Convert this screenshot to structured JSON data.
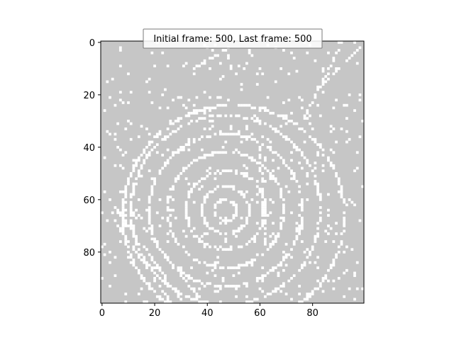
{
  "window": {
    "background": "#ffffff"
  },
  "chart_data": {
    "type": "heatmap",
    "title": "Initial frame: 500, Last frame: 500",
    "grid_size": [
      100,
      100
    ],
    "xlim": [
      0,
      99
    ],
    "ylim": [
      99,
      0
    ],
    "x_ticks": [
      0,
      20,
      40,
      60,
      80
    ],
    "y_ticks": [
      0,
      20,
      40,
      60,
      80
    ],
    "grid": false,
    "colormap": {
      "0": "#c6c6c6",
      "1": "#ffffff"
    },
    "description": "binary cellular pattern",
    "rings": [
      {
        "cx": 47,
        "cy": 64,
        "r": 4
      },
      {
        "cx": 47,
        "cy": 64,
        "r": 9
      },
      {
        "cx": 47,
        "cy": 64,
        "r": 15
      },
      {
        "cx": 47,
        "cy": 64,
        "r": 22
      },
      {
        "cx": 47,
        "cy": 64,
        "r": 29
      },
      {
        "cx": 47,
        "cy": 64,
        "r": 36
      },
      {
        "cx": 50,
        "cy": 66,
        "r": 42
      }
    ],
    "diagonals": [
      {
        "x0": 3,
        "y0": 60,
        "x1": 30,
        "y1": 98
      },
      {
        "x0": 6,
        "y0": 70,
        "x1": 26,
        "y1": 99
      },
      {
        "x0": 10,
        "y0": 63,
        "x1": 38,
        "y1": 99
      },
      {
        "x0": 82,
        "y0": 18,
        "x1": 98,
        "y1": 2
      },
      {
        "x0": 76,
        "y0": 30,
        "x1": 90,
        "y1": 2
      },
      {
        "x0": 35,
        "y0": 10,
        "x1": 48,
        "y1": 2
      },
      {
        "x0": 60,
        "y0": 40,
        "x1": 62,
        "y1": 78
      }
    ]
  }
}
